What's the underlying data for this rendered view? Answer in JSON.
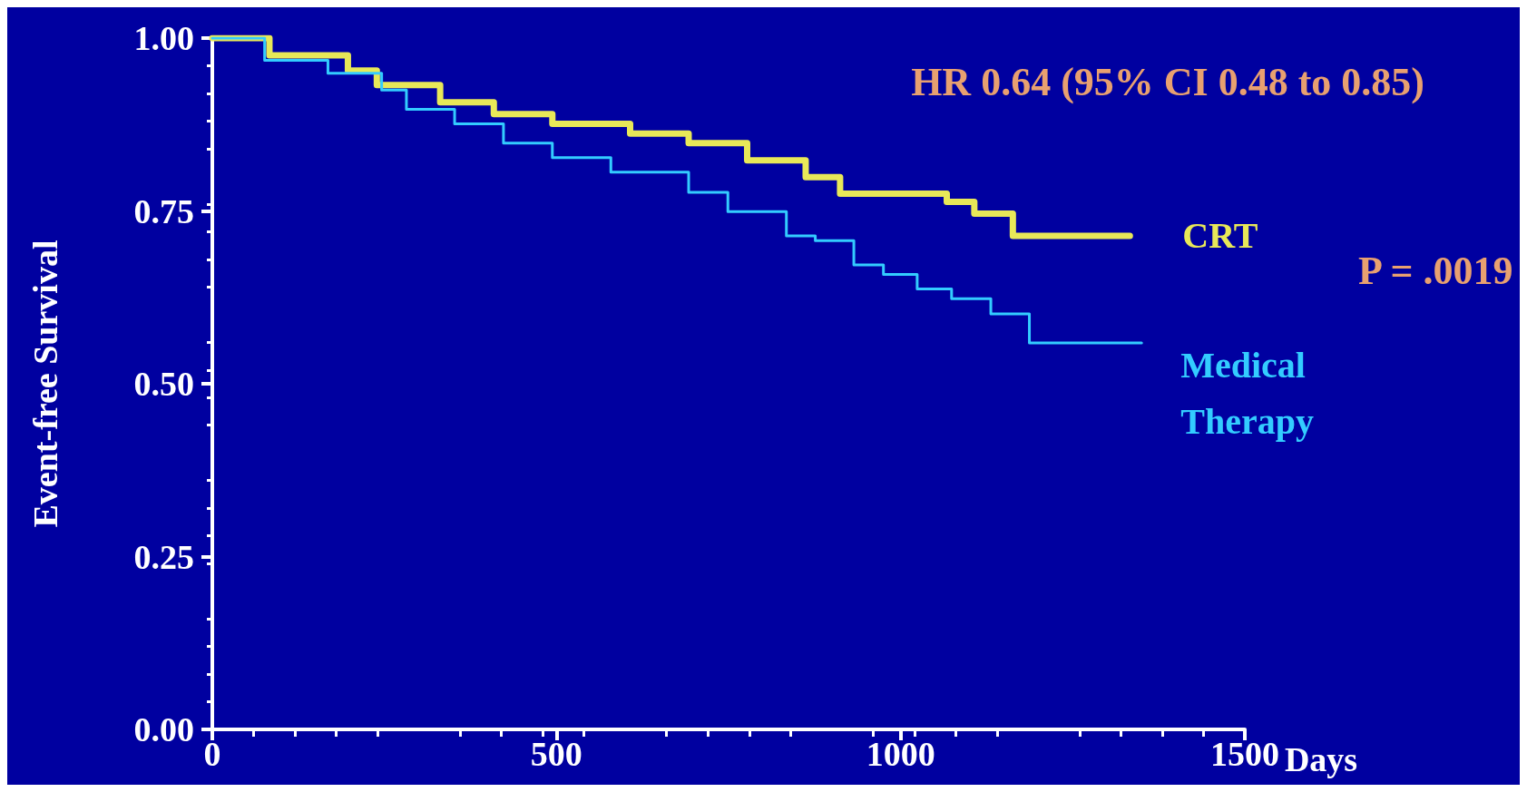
{
  "chart_data": {
    "type": "step",
    "xlabel": "Days",
    "ylabel": "Event-free Survival",
    "xlim": [
      0,
      1500
    ],
    "xticks": [
      0,
      500,
      1000,
      1500
    ],
    "ylim": [
      0,
      1
    ],
    "yticks": [
      {
        "value": 0,
        "label": "0.00"
      },
      {
        "value": 0.25,
        "label": "0.25"
      },
      {
        "value": 0.5,
        "label": "0.50"
      },
      {
        "value": 0.75,
        "label": "0.75"
      },
      {
        "value": 1,
        "label": "1.00"
      }
    ],
    "grid": false,
    "legend": false,
    "marker": "none",
    "line_style": "solid",
    "annotations": [
      "HR 0.64 (95% CI 0.48 to 0.85)",
      "P = .0019"
    ],
    "series": [
      {
        "name": "CRT",
        "color": "#e8e858",
        "x": [
          0,
          83,
          197,
          239,
          331,
          409,
          494,
          607,
          692,
          777,
          862,
          912,
          1067,
          1107,
          1163,
          1333
        ],
        "values": [
          1.0,
          0.975,
          0.953,
          0.932,
          0.907,
          0.89,
          0.876,
          0.862,
          0.848,
          0.823,
          0.799,
          0.775,
          0.763,
          0.746,
          0.714,
          0.714
        ]
      },
      {
        "name": "Medical Therapy",
        "color": "#33ccff",
        "x": [
          0,
          76,
          168,
          246,
          282,
          352,
          423,
          494,
          579,
          692,
          749,
          834,
          876,
          932,
          975,
          1024,
          1074,
          1131,
          1187,
          1350
        ],
        "values": [
          1.0,
          0.968,
          0.949,
          0.925,
          0.897,
          0.876,
          0.848,
          0.827,
          0.806,
          0.777,
          0.749,
          0.714,
          0.707,
          0.672,
          0.658,
          0.637,
          0.623,
          0.601,
          0.559,
          0.559
        ]
      }
    ]
  }
}
